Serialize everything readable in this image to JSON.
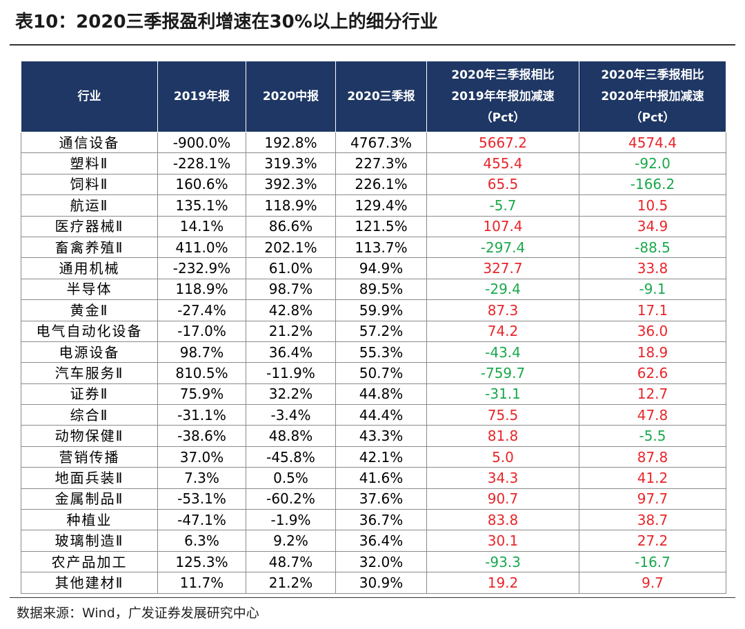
{
  "title": "表10：2020三季报盈利增速在30%以上的细分行业",
  "source": "数据来源：Wind，广发证券发展研究中心",
  "colors": {
    "header_bg": "#1f3764",
    "positive": "#e8252a",
    "negative": "#19a84b"
  },
  "table": {
    "headers": [
      [
        "行业"
      ],
      [
        "2019年报"
      ],
      [
        "2020中报"
      ],
      [
        "2020三季报"
      ],
      [
        "2020年三季报相比",
        "2019年年报加减速",
        "（Pct）"
      ],
      [
        "2020年三季报相比",
        "2020年中报加减速",
        "（Pct）"
      ]
    ],
    "rows": [
      [
        "通信设备",
        "-900.0%",
        "192.8%",
        "4767.3%",
        "5667.2",
        "4574.4"
      ],
      [
        "塑料Ⅱ",
        "-228.1%",
        "319.3%",
        "227.3%",
        "455.4",
        "-92.0"
      ],
      [
        "饲料Ⅱ",
        "160.6%",
        "392.3%",
        "226.1%",
        "65.5",
        "-166.2"
      ],
      [
        "航运Ⅱ",
        "135.1%",
        "118.9%",
        "129.4%",
        "-5.7",
        "10.5"
      ],
      [
        "医疗器械Ⅱ",
        "14.1%",
        "86.6%",
        "121.5%",
        "107.4",
        "34.9"
      ],
      [
        "畜禽养殖Ⅱ",
        "411.0%",
        "202.1%",
        "113.7%",
        "-297.4",
        "-88.5"
      ],
      [
        "通用机械",
        "-232.9%",
        "61.0%",
        "94.9%",
        "327.7",
        "33.8"
      ],
      [
        "半导体",
        "118.9%",
        "98.7%",
        "89.5%",
        "-29.4",
        "-9.1"
      ],
      [
        "黄金Ⅱ",
        "-27.4%",
        "42.8%",
        "59.9%",
        "87.3",
        "17.1"
      ],
      [
        "电气自动化设备",
        "-17.0%",
        "21.2%",
        "57.2%",
        "74.2",
        "36.0"
      ],
      [
        "电源设备",
        "98.7%",
        "36.4%",
        "55.3%",
        "-43.4",
        "18.9"
      ],
      [
        "汽车服务Ⅱ",
        "810.5%",
        "-11.9%",
        "50.7%",
        "-759.7",
        "62.6"
      ],
      [
        "证券Ⅱ",
        "75.9%",
        "32.2%",
        "44.8%",
        "-31.1",
        "12.7"
      ],
      [
        "综合Ⅱ",
        "-31.1%",
        "-3.4%",
        "44.4%",
        "75.5",
        "47.8"
      ],
      [
        "动物保健Ⅱ",
        "-38.6%",
        "48.8%",
        "43.3%",
        "81.8",
        "-5.5"
      ],
      [
        "营销传播",
        "37.0%",
        "-45.8%",
        "42.1%",
        "5.0",
        "87.8"
      ],
      [
        "地面兵装Ⅱ",
        "7.3%",
        "0.5%",
        "41.6%",
        "34.3",
        "41.2"
      ],
      [
        "金属制品Ⅱ",
        "-53.1%",
        "-60.2%",
        "37.6%",
        "90.7",
        "97.7"
      ],
      [
        "种植业",
        "-47.1%",
        "-1.9%",
        "36.7%",
        "83.8",
        "38.7"
      ],
      [
        "玻璃制造Ⅱ",
        "6.3%",
        "9.2%",
        "36.4%",
        "30.1",
        "27.2"
      ],
      [
        "农产品加工",
        "125.3%",
        "48.7%",
        "32.0%",
        "-93.3",
        "-16.7"
      ],
      [
        "其他建材Ⅱ",
        "11.7%",
        "21.2%",
        "30.9%",
        "19.2",
        "9.7"
      ]
    ]
  }
}
